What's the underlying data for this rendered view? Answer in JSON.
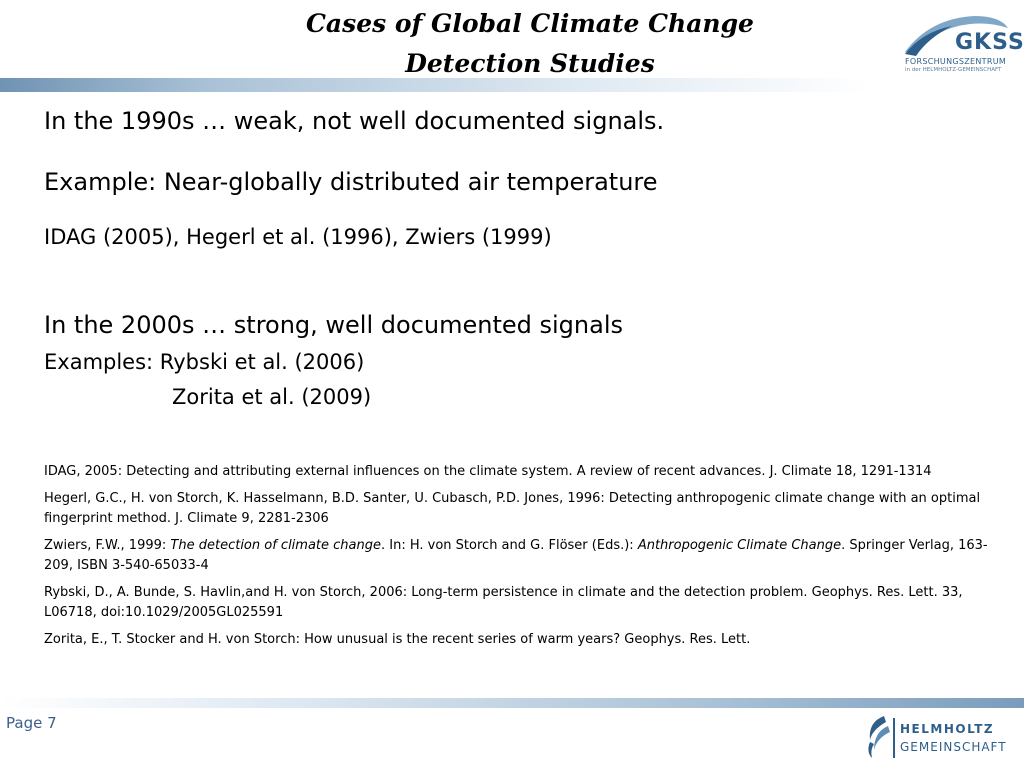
{
  "header": {
    "title_line1": "Cases of Global Climate Change",
    "title_line2": "Detection Studies",
    "logo": {
      "word": "GKSS",
      "sub1": "FORSCHUNGSZENTRUM",
      "sub2": "in der HELMHOLTZ-GEMEINSCHAFT",
      "icon": "gkss-swoosh-icon"
    }
  },
  "content": {
    "line1": "In the 1990s … weak, not well documented signals.",
    "line2": "Example: Near-globally distributed air temperature",
    "line3": "IDAG (2005), Hegerl et al. (1996), Zwiers (1999)",
    "line4": "In the 2000s … strong, well documented signals",
    "line5": "Examples:  Rybski et al. (2006)",
    "line6": "Zorita et al. (2009)"
  },
  "references": {
    "idag": "IDAG, 2005: Detecting and attributing external influences on the climate system. A review of recent advances. J. Climate 18, 1291-1314",
    "hegerl": "Hegerl, G.C., H. von Storch, K. Hasselmann, B.D. Santer, U. Cubasch, P.D. Jones, 1996: Detecting anthropogenic climate change with an optimal fingerprint method. J. Climate 9, 2281-2306",
    "zwiers_a": "Zwiers, F.W., 1999: ",
    "zwiers_b": "The detection of climate change",
    "zwiers_c": ". In: H. von Storch and G. Flöser (Eds.): ",
    "zwiers_d": "Anthropogenic Climate Change",
    "zwiers_e": ". Springer Verlag, 163-209, ISBN 3-540-65033-4",
    "rybski": "Rybski, D., A. Bunde, S. Havlin,and H. von Storch, 2006: Long-term persistence in climate and the detection problem. Geophys. Res. Lett. 33, L06718, doi:10.1029/2005GL025591",
    "zorita": "Zorita, E., T. Stocker and H. von Storch: How unusual is the recent series of warm years? Geophys. Res. Lett."
  },
  "footer": {
    "page_label": "Page 7",
    "helmholtz_line1": "HELMHOLTZ",
    "helmholtz_line2": "GEMEINSCHAFT",
    "icon": "helmholtz-wave-icon"
  },
  "colors": {
    "accent": "#2e5f8a",
    "bar_dark": "#6f93b3",
    "page_label": "#3a5f8f"
  }
}
